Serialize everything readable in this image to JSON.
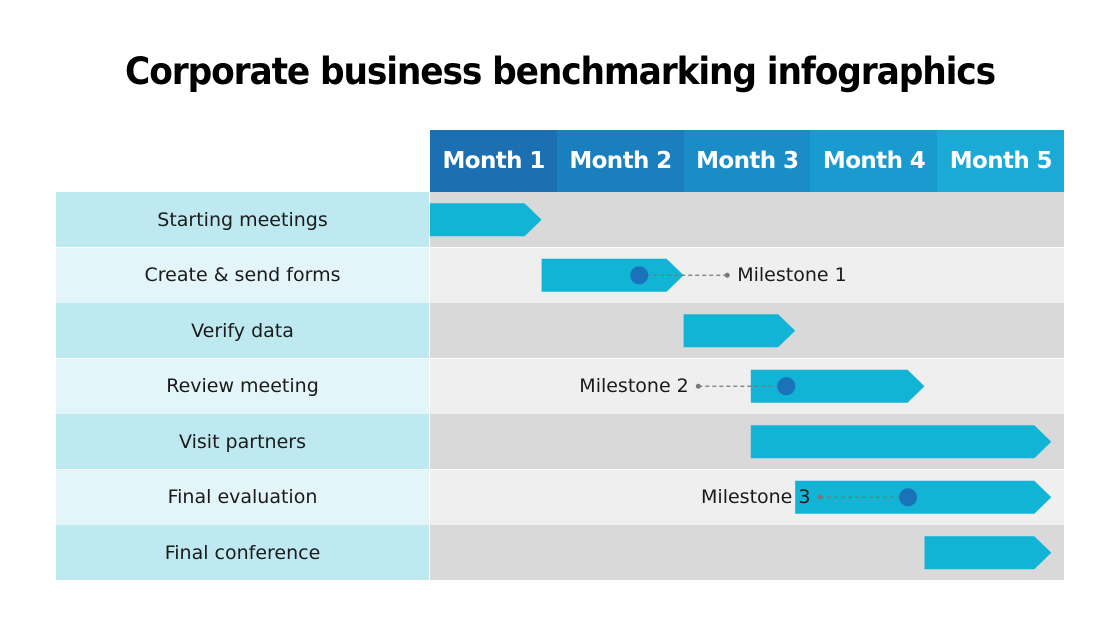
{
  "title": "Corporate business benchmarking infographics",
  "months": [
    "Month 1",
    "Month 2",
    "Month 3",
    "Month 4",
    "Month 5"
  ],
  "tasks": [
    {
      "label": "Starting meetings",
      "start": 0,
      "end": 0.88
    },
    {
      "label": "Create & send forms",
      "start": 0.88,
      "end": 2.0
    },
    {
      "label": "Verify data",
      "start": 2.0,
      "end": 2.88
    },
    {
      "label": "Review meeting",
      "start": 2.53,
      "end": 3.9
    },
    {
      "label": "Visit partners",
      "start": 2.53,
      "end": 4.9
    },
    {
      "label": "Final evaluation",
      "start": 2.88,
      "end": 4.9
    },
    {
      "label": "Final conference",
      "start": 3.9,
      "end": 4.9
    }
  ],
  "milestones": [
    {
      "label": "Milestone 1",
      "row": 1,
      "at": 1.65,
      "side": "right"
    },
    {
      "label": "Milestone 2",
      "row": 3,
      "at": 2.81,
      "side": "left"
    },
    {
      "label": "Milestone 3",
      "row": 5,
      "at": 3.77,
      "side": "left"
    }
  ],
  "colors": {
    "month_headers": [
      "#1c6fb0",
      "#1a7fbd",
      "#1b8dc6",
      "#1a9bcf",
      "#1ba9d6"
    ],
    "bar": "#12b4d6",
    "milestone_dot": "#1a73b8",
    "label_dark": "#bfe9f1",
    "label_light": "#e3f5f9",
    "row_dark": "#d9d9d9",
    "row_light": "#efefef",
    "connector": "#777777"
  }
}
